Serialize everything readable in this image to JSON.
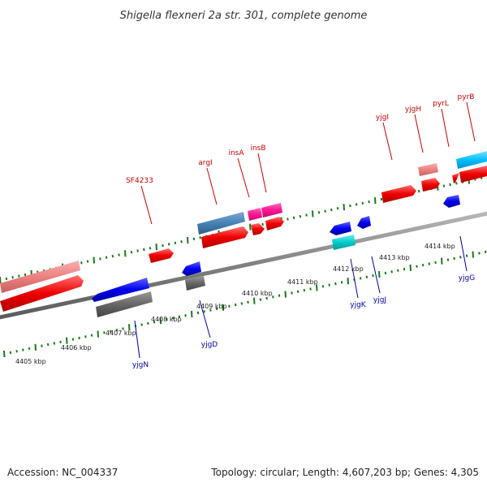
{
  "title": "Shigella flexneri 2a str. 301, complete genome",
  "footer": {
    "accession": "Accession: NC_004337",
    "summary": "Topology: circular; Length: 4,607,203 bp; Genes: 4,305"
  },
  "kbp_labels": [
    "4405 kbp",
    "4406 kbp",
    "4407 kbp",
    "4408 kbp",
    "4409 kbp",
    "4410 kbp",
    "4411 kbp",
    "4412 kbp",
    "4413 kbp",
    "4414 kbp"
  ],
  "top_gene_labels": [
    "SF4233",
    "argI",
    "insA",
    "insB",
    "yjgI",
    "yjgH",
    "pyrL",
    "pyrB"
  ],
  "bottom_gene_labels": [
    "yjgN",
    "yjgD",
    "yjgK",
    "yjgJ",
    "yjgG"
  ],
  "colors": {
    "forward_label": "#cc0000",
    "reverse_label": "#0000aa",
    "ruler_ticks": "#1a7a1a",
    "backbone": "#888888",
    "cds_forward": "#ff0000",
    "cds_forward_light": "#f08080",
    "cds_reverse": "#0000ee",
    "cds_gray": "#666666",
    "cds_steel": "#4682b4",
    "cds_magenta": "#ff1493",
    "cds_cyan": "#00cccc",
    "cds_sky": "#00bfff"
  }
}
